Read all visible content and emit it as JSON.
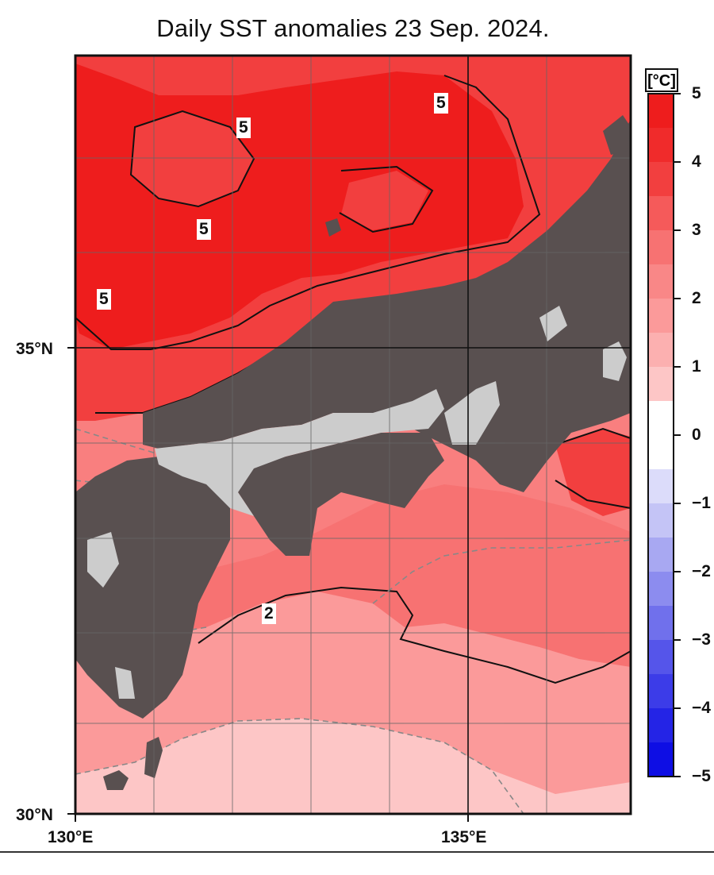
{
  "title": "Daily SST anomalies 23 Sep. 2024.",
  "axes": {
    "lat_labels": [
      "35°N",
      "30°N"
    ],
    "lon_labels": [
      "130°E",
      "135°E"
    ]
  },
  "colorbar": {
    "unit": "[°C]",
    "ticks": [
      "5",
      "4",
      "3",
      "2",
      "1",
      "0",
      "−1",
      "−2",
      "−3",
      "−4",
      "−5"
    ],
    "range": [
      -5,
      5
    ]
  },
  "contour_labels": [
    "5",
    "5",
    "5",
    "5",
    "2"
  ],
  "colors": {
    "land": "#595050",
    "lake_missing": "#cccccc",
    "anom_5": "#ee1d1d",
    "anom_4": "#f23f3f",
    "anom_3": "#f77272",
    "anom_2": "#fb9a9a",
    "anom_1": "#fdc6c6"
  }
}
